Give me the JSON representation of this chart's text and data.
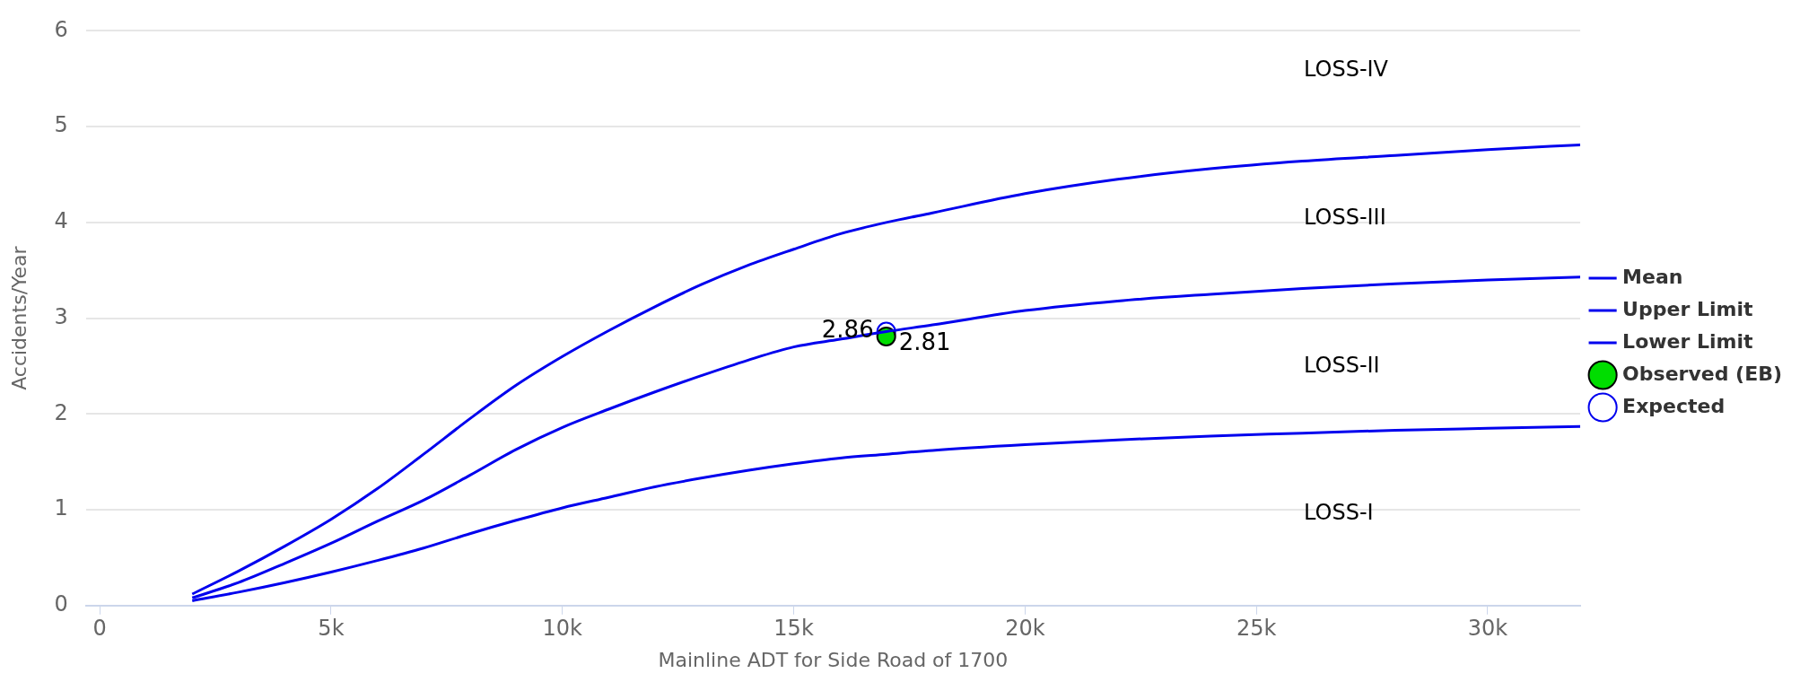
{
  "chart_data": {
    "type": "line",
    "xlabel": "Mainline ADT for Side Road of 1700",
    "ylabel": "Accidents/Year",
    "xlim": [
      -300,
      32000
    ],
    "ylim": [
      0,
      6
    ],
    "xticks": [
      0,
      {
        "value": 5000,
        "label": "5k"
      },
      {
        "value": 10000,
        "label": "10k"
      },
      {
        "value": 15000,
        "label": "15k"
      },
      {
        "value": 20000,
        "label": "20k"
      },
      {
        "value": 25000,
        "label": "25k"
      },
      {
        "value": 30000,
        "label": "30k"
      }
    ],
    "yticks": [
      0,
      1,
      2,
      3,
      4,
      5,
      6
    ],
    "grid": "y",
    "legend": "right",
    "line_style": "solid",
    "x": [
      2000,
      3000,
      4000,
      5000,
      6000,
      7000,
      8000,
      9000,
      10000,
      11000,
      12000,
      13000,
      14000,
      15000,
      16000,
      17000,
      18000,
      20000,
      22000,
      24000,
      26000,
      28000,
      30000,
      32000
    ],
    "series": [
      {
        "name": "Mean",
        "color": "#0000ee",
        "values": [
          0.08,
          0.24,
          0.44,
          0.65,
          0.88,
          1.1,
          1.36,
          1.63,
          1.86,
          2.05,
          2.23,
          2.4,
          2.56,
          2.7,
          2.78,
          2.86,
          2.93,
          3.08,
          3.18,
          3.25,
          3.31,
          3.36,
          3.4,
          3.43
        ]
      },
      {
        "name": "Upper Limit",
        "color": "#0000ee",
        "values": [
          0.12,
          0.36,
          0.62,
          0.9,
          1.22,
          1.58,
          1.95,
          2.3,
          2.6,
          2.87,
          3.12,
          3.35,
          3.55,
          3.72,
          3.88,
          4.0,
          4.1,
          4.3,
          4.45,
          4.56,
          4.64,
          4.7,
          4.76,
          4.81
        ]
      },
      {
        "name": "Lower Limit",
        "color": "#0000ee",
        "values": [
          0.05,
          0.14,
          0.24,
          0.35,
          0.47,
          0.6,
          0.75,
          0.89,
          1.02,
          1.13,
          1.24,
          1.33,
          1.41,
          1.48,
          1.54,
          1.58,
          1.62,
          1.68,
          1.73,
          1.77,
          1.8,
          1.83,
          1.85,
          1.87
        ]
      },
      {
        "name": "Observed (EB)",
        "type": "scatter",
        "color": "#00dd00",
        "x": [
          17000
        ],
        "values": [
          2.81
        ],
        "value_labels": [
          "2.81"
        ]
      },
      {
        "name": "Expected",
        "type": "scatter",
        "color": "#0000ee",
        "x": [
          17000
        ],
        "values": [
          2.86
        ],
        "value_labels": [
          "2.86"
        ]
      }
    ],
    "annotations": [
      "LOSS-IV",
      "LOSS-III",
      "LOSS-II",
      "LOSS-I"
    ]
  }
}
